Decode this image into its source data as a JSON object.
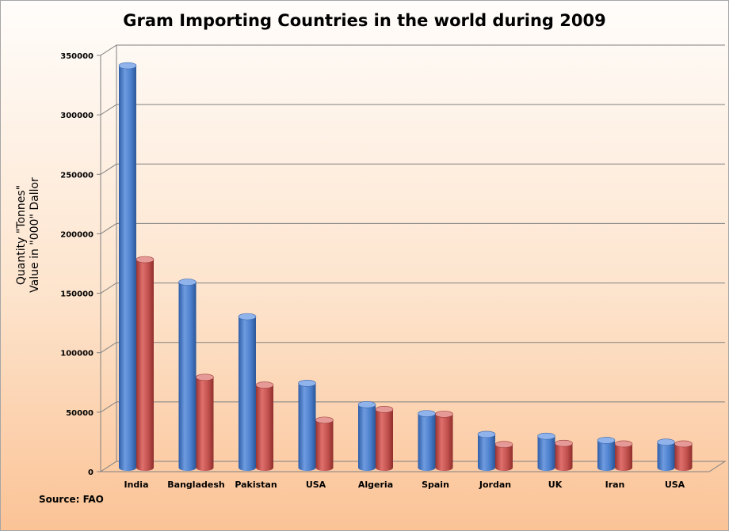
{
  "chart_data": {
    "type": "bar",
    "title": "Gram Importing Countries in the world during 2009",
    "ylabel_line1": "Quantity \"Tonnes\"",
    "ylabel_line2": "Value in \"000\" Dallor",
    "source": "Source: FAO",
    "categories": [
      "India",
      "Bangladesh",
      "Pakistan",
      "USA",
      "Algeria",
      "Spain",
      "Jordan",
      "UK",
      "Iran",
      "USA"
    ],
    "series": [
      {
        "values": [
          338000,
          156000,
          127000,
          71000,
          53000,
          45500,
          28000,
          26500,
          23000,
          21500
        ],
        "color": "#4a7ecb"
      },
      {
        "values": [
          175000,
          76000,
          69500,
          40000,
          49000,
          45000,
          19500,
          20500,
          20000,
          20000
        ],
        "color": "#c0504d"
      }
    ],
    "yticks": [
      "0",
      "50000",
      "100000",
      "150000",
      "200000",
      "250000",
      "300000",
      "350000"
    ],
    "ylim": [
      0,
      350000
    ],
    "grid": true
  }
}
